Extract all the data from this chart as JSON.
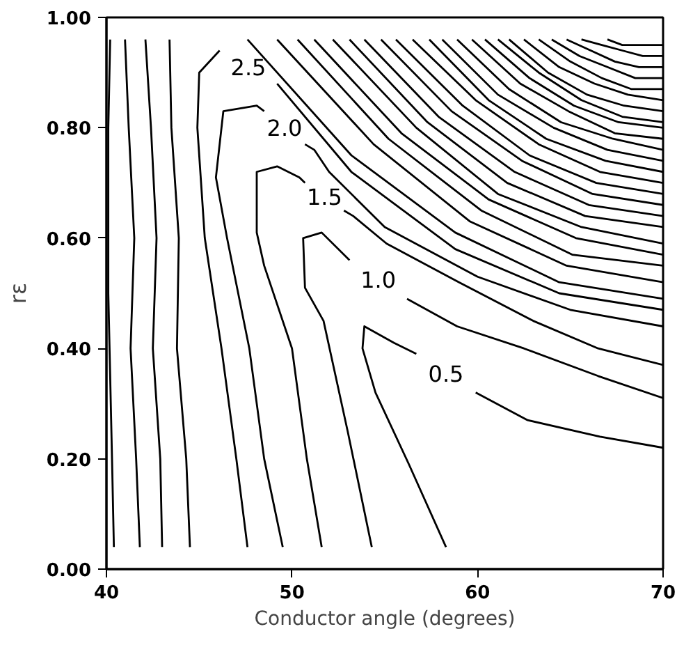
{
  "chart_data": {
    "type": "line",
    "xlabel": "Conductor angle (degrees)",
    "ylabel": "rε",
    "xlim": [
      40,
      70
    ],
    "ylim": [
      0,
      1
    ],
    "xticks": [
      40,
      50,
      60,
      70
    ],
    "yticks": [
      {
        "value": 0,
        "label": "0.00"
      },
      {
        "value": 0.2,
        "label": "0.20"
      },
      {
        "value": 0.4,
        "label": "0.40"
      },
      {
        "value": 0.6,
        "label": "0.60"
      },
      {
        "value": 0.8,
        "label": "0.80"
      },
      {
        "value": 1,
        "label": "1.00"
      }
    ],
    "grid": false,
    "legend": false,
    "line_style": "solid",
    "series": [
      {
        "color": "#000000",
        "x": [
          40.2,
          40.1,
          40.1,
          40.3,
          40.4
        ],
        "values": [
          0.96,
          0.8,
          0.5,
          0.2,
          0.04
        ]
      },
      {
        "color": "#000000",
        "x": [
          41.0,
          41.2,
          41.5,
          41.3,
          41.6,
          41.8
        ],
        "values": [
          0.96,
          0.8,
          0.6,
          0.4,
          0.2,
          0.04
        ]
      },
      {
        "color": "#000000",
        "x": [
          42.1,
          42.4,
          42.7,
          42.5,
          42.9,
          43.0
        ],
        "values": [
          0.96,
          0.8,
          0.6,
          0.4,
          0.2,
          0.04
        ]
      },
      {
        "color": "#000000",
        "x": [
          43.4,
          43.5,
          43.9,
          43.8,
          44.3,
          44.5
        ],
        "values": [
          0.96,
          0.8,
          0.6,
          0.4,
          0.2,
          0.04
        ]
      },
      {
        "name": "2.5",
        "color": "#000000",
        "x": [
          47.6,
          47.0,
          46.2,
          45.3,
          44.9,
          45.0,
          46.1,
          47.6,
          49.2,
          53.2,
          58.8,
          64.4,
          70
        ],
        "values": [
          0.04,
          0.2,
          0.4,
          0.6,
          0.8,
          0.9,
          0.94,
          null,
          0.88,
          0.72,
          0.58,
          0.5,
          0.47
        ]
      },
      {
        "name": "2.0",
        "color": "#000000",
        "x": [
          49.5,
          48.5,
          47.7,
          46.5,
          45.9,
          46.3,
          48.1,
          48.5,
          49.6,
          50.7,
          51.2,
          52.0,
          55.0,
          60.0,
          65.0,
          70
        ],
        "values": [
          0.04,
          0.2,
          0.4,
          0.6,
          0.71,
          0.83,
          0.84,
          0.83,
          null,
          0.77,
          0.76,
          0.72,
          0.62,
          0.53,
          0.47,
          0.44
        ]
      },
      {
        "name": "1.5",
        "color": "#000000",
        "x": [
          51.6,
          50.8,
          50.0,
          48.5,
          48.1,
          48.1,
          49.2,
          50.4,
          50.7,
          51.7,
          52.8,
          53.3,
          55.1,
          59.0,
          63.0,
          66.5,
          70
        ],
        "values": [
          0.04,
          0.2,
          0.4,
          0.55,
          0.61,
          0.72,
          0.73,
          0.71,
          0.7,
          null,
          0.65,
          0.64,
          0.59,
          0.52,
          0.45,
          0.4,
          0.37
        ]
      },
      {
        "name": "1.0",
        "color": "#000000",
        "x": [
          54.3,
          53.0,
          51.7,
          50.7,
          50.6,
          51.6,
          53.1,
          54.5,
          56.2,
          58.9,
          62.5,
          66.5,
          70
        ],
        "values": [
          0.04,
          0.25,
          0.45,
          0.51,
          0.6,
          0.61,
          0.56,
          null,
          0.49,
          0.44,
          0.4,
          0.35,
          0.31
        ]
      },
      {
        "name": "0.5",
        "color": "#000000",
        "x": [
          58.3,
          56.3,
          54.5,
          53.8,
          53.9,
          55.5,
          56.7,
          58.4,
          59.9,
          62.7,
          66.6,
          70
        ],
        "values": [
          0.04,
          0.19,
          0.32,
          0.4,
          0.44,
          0.41,
          0.39,
          null,
          0.32,
          0.27,
          0.24,
          0.22
        ]
      },
      {
        "color": "#000000",
        "x": [
          47.6,
          53.2,
          58.8,
          64.4,
          70
        ],
        "values": [
          0.96,
          0.75,
          0.61,
          0.52,
          0.49
        ]
      },
      {
        "color": "#000000",
        "x": [
          49.2,
          54.4,
          59.6,
          64.8,
          70
        ],
        "values": [
          0.96,
          0.77,
          0.63,
          0.55,
          0.52
        ]
      },
      {
        "color": "#000000",
        "x": [
          50.3,
          55.2,
          60.2,
          65.1,
          70
        ],
        "values": [
          0.96,
          0.78,
          0.65,
          0.57,
          0.55
        ]
      },
      {
        "color": "#000000",
        "x": [
          51.2,
          55.9,
          60.6,
          65.3,
          70
        ],
        "values": [
          0.96,
          0.79,
          0.67,
          0.6,
          0.57
        ]
      },
      {
        "color": "#000000",
        "x": [
          52.2,
          56.7,
          61.1,
          65.6,
          70
        ],
        "values": [
          0.96,
          0.8,
          0.68,
          0.62,
          0.59
        ]
      },
      {
        "color": "#000000",
        "x": [
          53.1,
          57.3,
          61.6,
          65.8,
          70
        ],
        "values": [
          0.96,
          0.81,
          0.7,
          0.64,
          0.62
        ]
      },
      {
        "color": "#000000",
        "x": [
          53.9,
          57.9,
          62.0,
          66.0,
          70
        ],
        "values": [
          0.96,
          0.82,
          0.72,
          0.66,
          0.64
        ]
      },
      {
        "color": "#000000",
        "x": [
          54.8,
          58.6,
          62.4,
          66.2,
          70
        ],
        "values": [
          0.96,
          0.83,
          0.74,
          0.68,
          0.66
        ]
      },
      {
        "color": "#000000",
        "x": [
          55.6,
          59.2,
          62.8,
          66.4,
          70
        ],
        "values": [
          0.96,
          0.84,
          0.75,
          0.7,
          0.68
        ]
      },
      {
        "color": "#000000",
        "x": [
          56.5,
          59.9,
          63.3,
          66.6,
          70
        ],
        "values": [
          0.96,
          0.85,
          0.77,
          0.72,
          0.7
        ]
      },
      {
        "color": "#000000",
        "x": [
          57.4,
          60.6,
          63.7,
          66.9,
          70
        ],
        "values": [
          0.96,
          0.85,
          0.78,
          0.74,
          0.72
        ]
      },
      {
        "color": "#000000",
        "x": [
          58.1,
          61.1,
          64.1,
          67.0,
          70
        ],
        "values": [
          0.96,
          0.86,
          0.8,
          0.76,
          0.74
        ]
      },
      {
        "color": "#000000",
        "x": [
          58.9,
          61.7,
          64.5,
          67.3,
          70
        ],
        "values": [
          0.96,
          0.87,
          0.81,
          0.78,
          0.76
        ]
      },
      {
        "color": "#000000",
        "x": [
          59.7,
          62.3,
          64.9,
          67.4,
          70
        ],
        "values": [
          0.96,
          0.88,
          0.83,
          0.79,
          0.78
        ]
      },
      {
        "color": "#000000",
        "x": [
          60.4,
          62.8,
          65.2,
          67.6,
          70
        ],
        "values": [
          0.96,
          0.89,
          0.84,
          0.81,
          0.8
        ]
      },
      {
        "color": "#000000",
        "x": [
          61.1,
          63.3,
          65.6,
          67.8,
          70
        ],
        "values": [
          0.96,
          0.9,
          0.85,
          0.82,
          0.81
        ]
      },
      {
        "color": "#000000",
        "x": [
          61.7,
          63.8,
          65.9,
          67.9,
          70
        ],
        "values": [
          0.96,
          0.9,
          0.86,
          0.84,
          0.83
        ]
      },
      {
        "color": "#000000",
        "x": [
          62.5,
          64.4,
          66.3,
          68.1,
          70
        ],
        "values": [
          0.96,
          0.91,
          0.88,
          0.86,
          0.85
        ]
      },
      {
        "color": "#000000",
        "x": [
          63.3,
          65.0,
          66.7,
          68.3,
          70
        ],
        "values": [
          0.96,
          0.92,
          0.89,
          0.87,
          0.87
        ]
      },
      {
        "color": "#000000",
        "x": [
          64.0,
          65.5,
          67.0,
          68.5,
          70
        ],
        "values": [
          0.96,
          0.93,
          0.91,
          0.89,
          0.89
        ]
      },
      {
        "color": "#000000",
        "x": [
          64.8,
          66.1,
          67.4,
          68.7,
          70
        ],
        "values": [
          0.96,
          0.94,
          0.92,
          0.91,
          0.91
        ]
      },
      {
        "color": "#000000",
        "x": [
          65.6,
          66.7,
          67.8,
          68.9,
          70
        ],
        "values": [
          0.96,
          0.95,
          0.94,
          0.93,
          0.93
        ]
      },
      {
        "color": "#000000",
        "x": [
          67.0,
          67.8,
          68.5,
          69.3,
          70
        ],
        "values": [
          0.96,
          0.95,
          0.95,
          0.95,
          0.95
        ]
      }
    ]
  }
}
